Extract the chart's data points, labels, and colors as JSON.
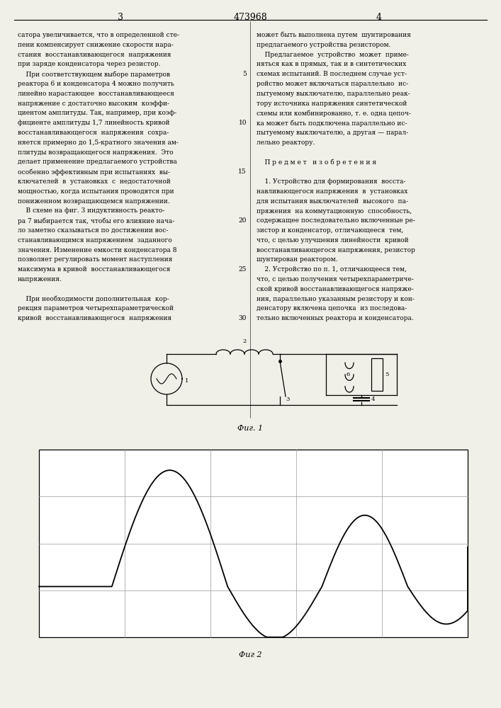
{
  "page_width": 7.07,
  "page_height": 10.0,
  "background_color": "#f0efe8",
  "patent_number": "473968",
  "page_numbers": [
    "3",
    "4"
  ],
  "col1_text": [
    "сатора увеличивается, что в определенной сте-",
    "пени компенсирует снижение скорости нара-",
    "стания  восстанавливающегося  напряжения",
    "при заряде конденсатора через резистор.",
    "    При соответствующем выборе параметров",
    "реактора 6 и конденсатора 4 можно получить",
    "линейно нарастающее  восстанавливающееся",
    "напряжение с достаточно высоким  коэффи-",
    "циентом амплитуды. Так, например, при коэф-",
    "фициенте амплитуды 1,7 линейность кривой",
    "восстанавливающегося  напряжения  сохра-",
    "няется примерно до 1,5-кратного значения ам-",
    "плитуды возвращающегося напряжения.  Это",
    "делает применение предлагаемого устройства",
    "особенно эффективным при испытаниях  вы-",
    "ключателей  в  установках  с  недостаточной",
    "мощностью, когда испытания проводятся при",
    "пониженном возвращающемся напряжении.",
    "    В схеме на фиг. 3 индуктивность реакто-",
    "ра 7 выбирается так, чтобы его влияние нача-",
    "ло заметно сказываться по достижении вос-",
    "станавливающимся напряжением  заданного",
    "значения. Изменение емкости конденсатора 8",
    "позволяет регулировать момент наступления",
    "максимума в кривой  восстанавливающегося",
    "напряжения.",
    "",
    "    При необходимости дополнительная  кор-",
    "рекция параметров четырехпараметрической",
    "кривой  восстанавливающегося  напряжения"
  ],
  "col2_text": [
    "может быть выполнена путем  шунтирования",
    "предлагаемого устройства резистором.",
    "    Предлагаемое  устройство  может  приме-",
    "няться как в прямых, так и в синтетических",
    "схемах испытаний. В последнем случае уст-",
    "ройство может включаться параллельно  ис-",
    "пытуемому выключателю, параллельно реак-",
    "тору источника напряжения синтетической",
    "схемы или комбинированно, т. е. одна цепоч-",
    "ка может быть подключена параллельно ис-",
    "пытуемому выключателю, а другая — парал-",
    "лельно реактору.",
    "",
    "    П р е д м е т   и з о б р е т е н и я",
    "",
    "    1. Устройство для формирования  восста-",
    "навливающегося напряжения  в  установках",
    "для испытания выключателей  высокого  па-",
    "пряжения  на коммутационную  способность,",
    "содержащее последовательно включенные ре-",
    "зистор и конденсатор, отличающееся  тем,",
    "что, с целью улучшения линейности  кривой",
    "восстанавливающегося напряжения, резистор",
    "шунтирован реактором.",
    "    2. Устройство по п. 1, отличающееся тем,",
    "что, с целью получения четырехпараметриче-",
    "ской кривой восстанавливающегося напряже-",
    "ния, параллельно указанным резистору и кон-",
    "денсатору включена цепочка  из последова-",
    "тельно включенных реактора и конденсатора."
  ],
  "fig1_label": "Фиг. 1",
  "fig2_label": "Фиг 2"
}
